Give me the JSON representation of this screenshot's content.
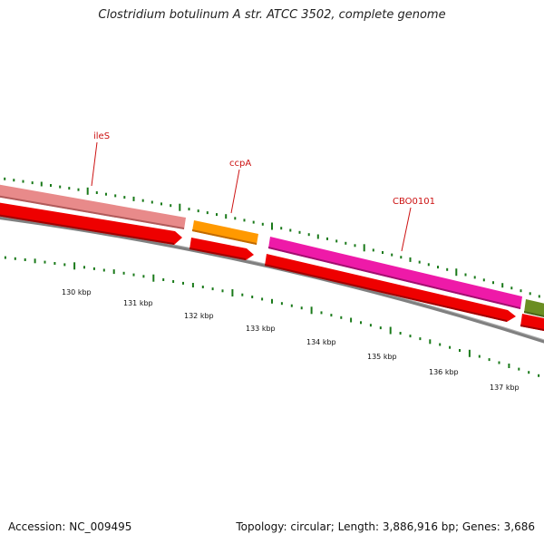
{
  "title": "Clostridium botulinum A str. ATCC 3502, complete genome",
  "footer": {
    "accession": "Accession: NC_009495",
    "topology": "Topology: circular; Length: 3,886,916 bp; Genes: 3,686"
  },
  "colors": {
    "tick_marks": "#1a7a1a",
    "backbone": "#808080",
    "gene_label": "#cc1111",
    "reverse_strand_genes": "#ee0000",
    "ileS": "#e88a8a",
    "ccpA": "#ff9900",
    "CBO0101": "#ee1aa8",
    "next_gene": "#6b8e23"
  },
  "genes": [
    {
      "name": "ileS",
      "color": "#e88a8a",
      "strand": "forward"
    },
    {
      "name": "ccpA",
      "color": "#ff9900",
      "strand": "forward"
    },
    {
      "name": "CBO0101",
      "color": "#ee1aa8",
      "strand": "forward"
    },
    {
      "name": "",
      "color": "#6b8e23",
      "strand": "forward"
    }
  ],
  "kbp_labels": [
    "130 kbp",
    "131 kbp",
    "132 kbp",
    "133 kbp",
    "134 kbp",
    "135 kbp",
    "136 kbp",
    "137 kbp"
  ]
}
